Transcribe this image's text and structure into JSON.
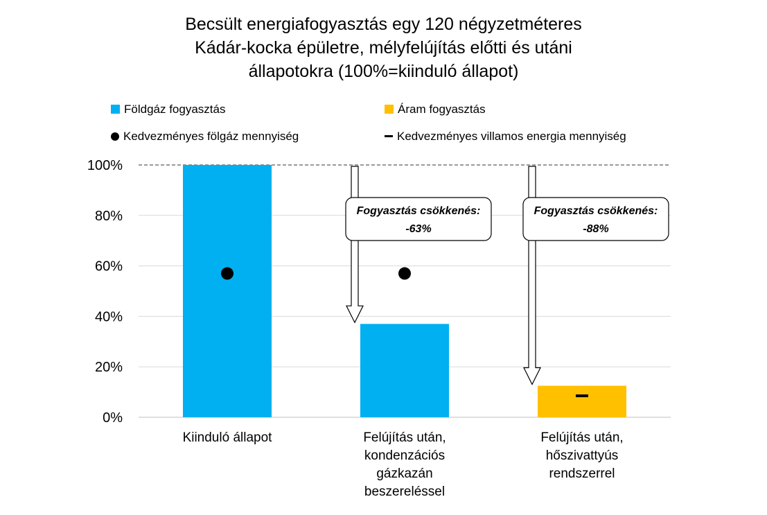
{
  "chart_data": {
    "type": "bar",
    "title_lines": [
      "Becsült energiafogyasztás egy 120 négyzetméteres",
      "Kádár-kocka épületre, mélyfelújítás előtti és utáni",
      "állapotokra (100%=kiinduló állapot)"
    ],
    "categories": [
      [
        "Kiinduló állapot"
      ],
      [
        "Felújítás után,",
        "kondenzációs",
        "gázkazán",
        "beszereléssel"
      ],
      [
        "Felújítás után,",
        "hőszivattyús",
        "rendszerrel"
      ]
    ],
    "series": [
      {
        "name": "Földgáz fogyasztás",
        "color": "#00B0F0",
        "values": [
          100,
          37,
          null
        ]
      },
      {
        "name": "Áram fogyasztás",
        "color": "#FFC000",
        "values": [
          null,
          null,
          12.5
        ]
      }
    ],
    "markers": [
      {
        "name": "Kedvezményes fölgáz mennyiség",
        "shape": "dot",
        "values": [
          57,
          57,
          null
        ]
      },
      {
        "name": "Kedvezményes villamos energia mennyiség",
        "shape": "dash",
        "values": [
          null,
          null,
          8.5
        ]
      }
    ],
    "ylim": [
      0,
      100
    ],
    "yticks": [
      0,
      20,
      40,
      60,
      80,
      100
    ],
    "ytick_labels": [
      "0%",
      "20%",
      "40%",
      "60%",
      "80%",
      "100%"
    ],
    "reference_line": 100,
    "annotations": [
      {
        "category": 1,
        "lines": [
          "Fogyasztás csökkenés:",
          "-63%"
        ]
      },
      {
        "category": 2,
        "lines": [
          "Fogyasztás csökkenés:",
          "-88%"
        ]
      }
    ],
    "grid": true,
    "legend_position": "top"
  }
}
